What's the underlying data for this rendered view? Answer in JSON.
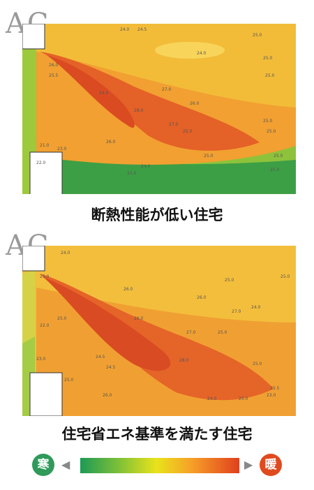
{
  "panels": [
    {
      "id": "low_insulation",
      "logo_text": "AC",
      "caption": "断熱性能が低い住宅",
      "contour_labels": [
        "24.0",
        "24.5",
        "24.0",
        "25.0",
        "25.0",
        "25.0",
        "25.0",
        "25.0",
        "25.0",
        "25.0",
        "26.0",
        "25.5",
        "27.0",
        "26.0",
        "28.0",
        "27.0",
        "26.0",
        "23.0",
        "25.0",
        "22.0",
        "24.0",
        "24.0",
        "25.0",
        "21.0",
        "22.0"
      ]
    },
    {
      "id": "energy_standard",
      "logo_text": "AC",
      "caption": "住宅省エネ基準を満たす住宅",
      "contour_labels": [
        "24.0",
        "25.0",
        "26.0",
        "25.0",
        "25.0",
        "26.0",
        "27.0",
        "27.0",
        "28.0",
        "24.0",
        "25.0",
        "22.0",
        "25.0",
        "26.0",
        "24.5",
        "24.5",
        "25.0",
        "25.0",
        "25.5",
        "23.0",
        "26.0",
        "24.0",
        "25.0",
        "23.0"
      ]
    }
  ],
  "legend": {
    "cold_label": "寒",
    "warm_label": "暖",
    "cold_arrow": "◀",
    "warm_arrow": "▶",
    "cold_color": "#2f9a5a",
    "warm_color": "#e04a1f"
  }
}
